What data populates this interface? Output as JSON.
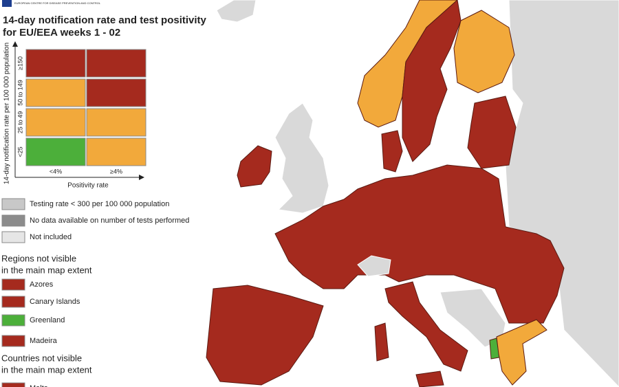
{
  "header": {
    "logo_text": "EUROPEAN CENTRE FOR DISEASE PREVENTION AND CONTROL"
  },
  "title": [
    "14-day notification rate and test positivity",
    "for EU/EEA weeks 1 - 02"
  ],
  "matrix": {
    "y_label": "14-day notification rate per 100 000 population",
    "rows": [
      {
        "label": "≥150",
        "cells": [
          "#a52a1e",
          "#a52a1e"
        ]
      },
      {
        "label": "50 to 149",
        "cells": [
          "#f2a93b",
          "#a52a1e"
        ]
      },
      {
        "label": "25 to 49",
        "cells": [
          "#f2a93b",
          "#f2a93b"
        ]
      },
      {
        "label": "<25",
        "cells": [
          "#4caf3a",
          "#f2a93b"
        ]
      }
    ],
    "columns": [
      "<4%",
      "≥4%"
    ],
    "x_label": "Positivity rate"
  },
  "testing_legend": [
    {
      "label": "Testing rate < 300 per 100 000 population",
      "color": "#c8c8c8"
    },
    {
      "label": "No data available on number of tests performed",
      "color": "#8c8c8c"
    },
    {
      "label": "Not included",
      "color": "#e6e6e6"
    }
  ],
  "regions": {
    "title": [
      "Regions not visible",
      "in the main map extent"
    ],
    "items": [
      {
        "label": "Azores",
        "color": "#a52a1e"
      },
      {
        "label": "Canary Islands",
        "color": "#a52a1e"
      },
      {
        "label": "Greenland",
        "color": "#4caf3a"
      },
      {
        "label": "Madeira",
        "color": "#a52a1e"
      }
    ]
  },
  "countries": {
    "title": [
      "Countries not visible",
      "in the main map extent"
    ],
    "items": [
      {
        "label": "Malta",
        "color": "#a52a1e"
      }
    ]
  }
}
